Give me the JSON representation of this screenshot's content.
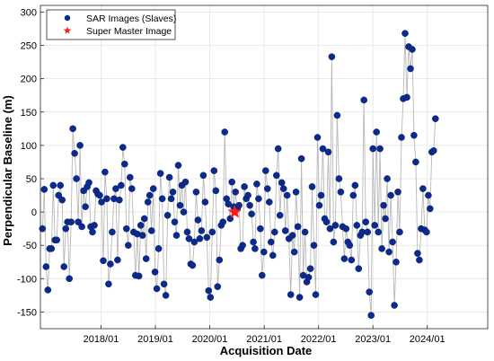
{
  "chart_data": {
    "type": "scatter",
    "title": "",
    "xlabel": "Acquisition Date",
    "ylabel": "Perpendicular Baseline (m)",
    "x_ticks": [
      "2018/01",
      "2019/01",
      "2020/01",
      "2021/01",
      "2022/01",
      "2023/01",
      "2024/01"
    ],
    "y_ticks": [
      -150,
      -100,
      -50,
      0,
      50,
      100,
      150,
      200,
      250,
      300
    ],
    "xlim": [
      "2016-11-20",
      "2025-02-10"
    ],
    "ylim": [
      -175,
      310
    ],
    "grid": true,
    "legend_position": "top-left",
    "colors": {
      "slaves": "#0b2a8c",
      "master": "#ff1a1a",
      "line": "#b8b8b8",
      "grid": "#e4e4e4"
    },
    "series": [
      {
        "name": "SAR Images (Slaves)",
        "marker": "circle",
        "connected_by_line": true,
        "points": [
          [
            "2016-12-04",
            -25
          ],
          [
            "2016-12-16",
            34
          ],
          [
            "2016-12-28",
            -82
          ],
          [
            "2017-01-09",
            -117
          ],
          [
            "2017-01-21",
            -55
          ],
          [
            "2017-02-02",
            -55
          ],
          [
            "2017-02-14",
            40
          ],
          [
            "2017-02-26",
            -42
          ],
          [
            "2017-03-10",
            -42
          ],
          [
            "2017-03-22",
            25
          ],
          [
            "2017-04-03",
            40
          ],
          [
            "2017-04-15",
            18
          ],
          [
            "2017-04-27",
            -82
          ],
          [
            "2017-05-09",
            -25
          ],
          [
            "2017-05-21",
            -15
          ],
          [
            "2017-06-02",
            -100
          ],
          [
            "2017-06-14",
            -15
          ],
          [
            "2017-06-26",
            125
          ],
          [
            "2017-07-08",
            88
          ],
          [
            "2017-07-20",
            50
          ],
          [
            "2017-08-01",
            -15
          ],
          [
            "2017-08-13",
            100
          ],
          [
            "2017-08-25",
            -22
          ],
          [
            "2017-09-06",
            32
          ],
          [
            "2017-09-18",
            8
          ],
          [
            "2017-09-30",
            38
          ],
          [
            "2017-10-12",
            44
          ],
          [
            "2017-10-24",
            -22
          ],
          [
            "2017-11-05",
            -30
          ],
          [
            "2017-11-17",
            -20
          ],
          [
            "2017-11-29",
            32
          ],
          [
            "2017-12-11",
            27
          ],
          [
            "2017-12-23",
            25
          ],
          [
            "2018-01-04",
            15
          ],
          [
            "2018-01-16",
            -73
          ],
          [
            "2018-01-28",
            60
          ],
          [
            "2018-02-09",
            20
          ],
          [
            "2018-02-21",
            -108
          ],
          [
            "2018-03-05",
            -78
          ],
          [
            "2018-03-17",
            -30
          ],
          [
            "2018-03-29",
            20
          ],
          [
            "2018-04-10",
            35
          ],
          [
            "2018-04-22",
            -72
          ],
          [
            "2018-05-04",
            18
          ],
          [
            "2018-05-16",
            40
          ],
          [
            "2018-05-28",
            97
          ],
          [
            "2018-06-09",
            72
          ],
          [
            "2018-06-21",
            -25
          ],
          [
            "2018-07-03",
            -50
          ],
          [
            "2018-07-15",
            52
          ],
          [
            "2018-07-27",
            35
          ],
          [
            "2018-08-08",
            -30
          ],
          [
            "2018-08-20",
            -95
          ],
          [
            "2018-09-01",
            -33
          ],
          [
            "2018-09-13",
            -96
          ],
          [
            "2018-09-25",
            -20
          ],
          [
            "2018-10-07",
            -35
          ],
          [
            "2018-10-19",
            -10
          ],
          [
            "2018-10-31",
            -70
          ],
          [
            "2018-11-12",
            15
          ],
          [
            "2018-11-24",
            25
          ],
          [
            "2018-12-06",
            -28
          ],
          [
            "2018-12-18",
            35
          ],
          [
            "2018-12-30",
            -90
          ],
          [
            "2019-01-11",
            -115
          ],
          [
            "2019-01-23",
            -55
          ],
          [
            "2019-02-04",
            58
          ],
          [
            "2019-02-16",
            20
          ],
          [
            "2019-02-28",
            -108
          ],
          [
            "2019-03-12",
            -125
          ],
          [
            "2019-03-24",
            -5
          ],
          [
            "2019-04-05",
            52
          ],
          [
            "2019-04-17",
            20
          ],
          [
            "2019-04-29",
            30
          ],
          [
            "2019-05-11",
            -15
          ],
          [
            "2019-05-23",
            -35
          ],
          [
            "2019-06-04",
            70
          ],
          [
            "2019-06-16",
            10
          ],
          [
            "2019-06-28",
            40
          ],
          [
            "2019-07-10",
            0
          ],
          [
            "2019-07-22",
            45
          ],
          [
            "2019-08-03",
            -30
          ],
          [
            "2019-08-15",
            -40
          ],
          [
            "2019-08-27",
            -78
          ],
          [
            "2019-09-08",
            -80
          ],
          [
            "2019-09-20",
            -45
          ],
          [
            "2019-10-02",
            30
          ],
          [
            "2019-10-14",
            -12
          ],
          [
            "2019-10-26",
            -40
          ],
          [
            "2019-11-07",
            -28
          ],
          [
            "2019-11-19",
            55
          ],
          [
            "2019-12-01",
            15
          ],
          [
            "2019-12-13",
            -38
          ],
          [
            "2019-12-25",
            -118
          ],
          [
            "2020-01-06",
            -128
          ],
          [
            "2020-01-18",
            -30
          ],
          [
            "2020-01-30",
            62
          ],
          [
            "2020-02-11",
            32
          ],
          [
            "2020-02-23",
            -112
          ],
          [
            "2020-03-06",
            -72
          ],
          [
            "2020-03-18",
            -20
          ],
          [
            "2020-03-30",
            -15
          ],
          [
            "2020-04-11",
            120
          ],
          [
            "2020-04-23",
            20
          ],
          [
            "2020-05-05",
            12
          ],
          [
            "2020-05-17",
            -10
          ],
          [
            "2020-05-29",
            45
          ],
          [
            "2020-06-10",
            8
          ],
          [
            "2020-06-22",
            30
          ],
          [
            "2020-07-04",
            5
          ],
          [
            "2020-07-16",
            10
          ],
          [
            "2020-07-28",
            -55
          ],
          [
            "2020-08-09",
            -50
          ],
          [
            "2020-08-21",
            38
          ],
          [
            "2020-09-02",
            20
          ],
          [
            "2020-09-14",
            25
          ],
          [
            "2020-09-26",
            10
          ],
          [
            "2020-10-08",
            -3
          ],
          [
            "2020-10-20",
            -45
          ],
          [
            "2020-10-31",
            -55
          ],
          [
            "2020-11-12",
            42
          ],
          [
            "2020-11-24",
            20
          ],
          [
            "2020-12-06",
            -25
          ],
          [
            "2020-12-18",
            -95
          ],
          [
            "2020-12-30",
            -60
          ],
          [
            "2021-01-11",
            62
          ],
          [
            "2021-01-23",
            35
          ],
          [
            "2021-02-04",
            15
          ],
          [
            "2021-02-16",
            -45
          ],
          [
            "2021-02-28",
            -65
          ],
          [
            "2021-03-12",
            -30
          ],
          [
            "2021-03-24",
            55
          ],
          [
            "2021-04-05",
            95
          ],
          [
            "2021-04-17",
            -5
          ],
          [
            "2021-04-29",
            44
          ],
          [
            "2021-05-11",
            35
          ],
          [
            "2021-05-23",
            -28
          ],
          [
            "2021-06-04",
            25
          ],
          [
            "2021-06-16",
            -40
          ],
          [
            "2021-06-28",
            -124
          ],
          [
            "2021-07-10",
            -35
          ],
          [
            "2021-07-22",
            -60
          ],
          [
            "2021-08-03",
            30
          ],
          [
            "2021-08-15",
            -22
          ],
          [
            "2021-08-27",
            -128
          ],
          [
            "2021-09-08",
            80
          ],
          [
            "2021-09-20",
            -95
          ],
          [
            "2021-10-02",
            -30
          ],
          [
            "2021-10-14",
            -105
          ],
          [
            "2021-10-26",
            -98
          ],
          [
            "2021-11-07",
            -85
          ],
          [
            "2021-11-19",
            38
          ],
          [
            "2021-12-01",
            -50
          ],
          [
            "2021-12-13",
            -124
          ],
          [
            "2021-12-25",
            112
          ],
          [
            "2022-01-06",
            10
          ],
          [
            "2022-01-18",
            25
          ],
          [
            "2022-01-30",
            95
          ],
          [
            "2022-02-11",
            -10
          ],
          [
            "2022-02-23",
            -15
          ],
          [
            "2022-03-07",
            90
          ],
          [
            "2022-03-19",
            -25
          ],
          [
            "2022-03-31",
            233
          ],
          [
            "2022-04-12",
            -45
          ],
          [
            "2022-04-24",
            -20
          ],
          [
            "2022-05-06",
            145
          ],
          [
            "2022-05-18",
            50
          ],
          [
            "2022-05-30",
            30
          ],
          [
            "2022-06-11",
            -22
          ],
          [
            "2022-06-23",
            -70
          ],
          [
            "2022-07-05",
            -25
          ],
          [
            "2022-07-17",
            -45
          ],
          [
            "2022-07-29",
            -50
          ],
          [
            "2022-08-10",
            -72
          ],
          [
            "2022-08-22",
            25
          ],
          [
            "2022-09-03",
            40
          ],
          [
            "2022-09-15",
            -20
          ],
          [
            "2022-09-27",
            -85
          ],
          [
            "2022-10-09",
            -35
          ],
          [
            "2022-10-21",
            -30
          ],
          [
            "2022-11-02",
            168
          ],
          [
            "2022-11-14",
            -15
          ],
          [
            "2022-11-26",
            -30
          ],
          [
            "2022-12-08",
            -120
          ],
          [
            "2022-12-20",
            -155
          ],
          [
            "2023-01-01",
            95
          ],
          [
            "2023-01-13",
            -20
          ],
          [
            "2023-01-25",
            120
          ],
          [
            "2023-02-06",
            -30
          ],
          [
            "2023-02-18",
            95
          ],
          [
            "2023-03-02",
            -55
          ],
          [
            "2023-03-14",
            10
          ],
          [
            "2023-03-26",
            -10
          ],
          [
            "2023-04-07",
            50
          ],
          [
            "2023-04-19",
            -60
          ],
          [
            "2023-05-01",
            25
          ],
          [
            "2023-05-13",
            -45
          ],
          [
            "2023-05-25",
            -140
          ],
          [
            "2023-06-06",
            -75
          ],
          [
            "2023-06-18",
            30
          ],
          [
            "2023-06-30",
            -30
          ],
          [
            "2023-07-12",
            112
          ],
          [
            "2023-07-24",
            170
          ],
          [
            "2023-08-05",
            268
          ],
          [
            "2023-08-17",
            172
          ],
          [
            "2023-08-29",
            248
          ],
          [
            "2023-09-10",
            215
          ],
          [
            "2023-09-22",
            244
          ],
          [
            "2023-10-04",
            115
          ],
          [
            "2023-10-16",
            75
          ],
          [
            "2023-10-28",
            -62
          ],
          [
            "2023-11-09",
            -72
          ],
          [
            "2023-11-21",
            -25
          ],
          [
            "2023-12-03",
            35
          ],
          [
            "2023-12-15",
            -27
          ],
          [
            "2023-12-27",
            -30
          ],
          [
            "2024-01-08",
            25
          ],
          [
            "2024-01-20",
            5
          ],
          [
            "2024-02-01",
            90
          ],
          [
            "2024-02-13",
            92
          ],
          [
            "2024-02-25",
            140
          ]
        ]
      },
      {
        "name": "Super Master Image",
        "marker": "star",
        "points": [
          [
            "2020-06-17",
            0
          ]
        ]
      }
    ]
  }
}
